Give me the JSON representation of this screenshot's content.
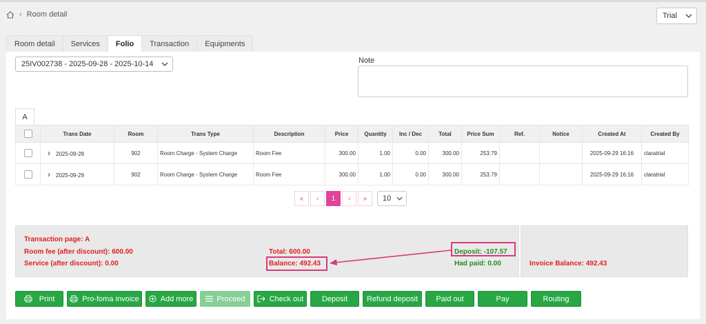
{
  "breadcrumb": {
    "current": "Room detail"
  },
  "env": {
    "selected": "Trial"
  },
  "tabs": [
    {
      "label": "Room detail",
      "active": false
    },
    {
      "label": "Services",
      "active": false
    },
    {
      "label": "Folio",
      "active": true
    },
    {
      "label": "Transaction",
      "active": false
    },
    {
      "label": "Equipments",
      "active": false
    }
  ],
  "folio": {
    "selected": "25IV002738 - 2025-09-28 - 2025-10-14"
  },
  "note": {
    "label": "Note",
    "value": ""
  },
  "subtab": {
    "label": "A"
  },
  "table": {
    "headers": [
      "Trans Date",
      "Room",
      "Trans Type",
      "Description",
      "Price",
      "Quantity",
      "Inc / Dec",
      "Total",
      "Price Sum",
      "Ref.",
      "Notice",
      "Created At",
      "Created By"
    ],
    "rows": [
      {
        "date": "2025-09-28",
        "room": "902",
        "type": "Room Charge - System Charge",
        "desc": "Room Fee",
        "price": "300.00",
        "qty": "1.00",
        "incdec": "0.00",
        "total": "300.00",
        "pricesum": "253.79",
        "ref": "",
        "notice": "",
        "created_at": "2025-09-29 16:16",
        "created_by": "claratrial"
      },
      {
        "date": "2025-09-29",
        "room": "902",
        "type": "Room Charge - System Charge",
        "desc": "Room Fee",
        "price": "300.00",
        "qty": "1.00",
        "incdec": "0.00",
        "total": "300.00",
        "pricesum": "253.79",
        "ref": "",
        "notice": "",
        "created_at": "2025-09-29 16:16",
        "created_by": "claratrial"
      }
    ]
  },
  "pagination": {
    "first": "«",
    "prev": "‹",
    "current": "1",
    "next": "›",
    "last": "»",
    "page_size": "10"
  },
  "summary": {
    "transaction_page": "Transaction page: A",
    "room_fee": "Room fee (after discount): 600.00",
    "service": "Service (after discount): 0.00",
    "total": "Total: 600.00",
    "balance": "Balance: 492.43",
    "deposit": "Deposit: -107.57",
    "had_paid": "Had paid: 0.00",
    "invoice_balance": "Invoice Balance: 492.43"
  },
  "colors": {
    "accent_pink": "#e0449a",
    "green": "#28a745",
    "red": "#e02020",
    "annotation": "#d63a7c"
  },
  "actions": {
    "print": "Print",
    "proforma": "Pro-foma invoice",
    "add_more": "Add more",
    "proceed": "Proceed",
    "check_out": "Check out",
    "deposit": "Deposit",
    "refund_deposit": "Refund deposit",
    "paid_out": "Paid out",
    "pay": "Pay",
    "routing": "Routing"
  }
}
